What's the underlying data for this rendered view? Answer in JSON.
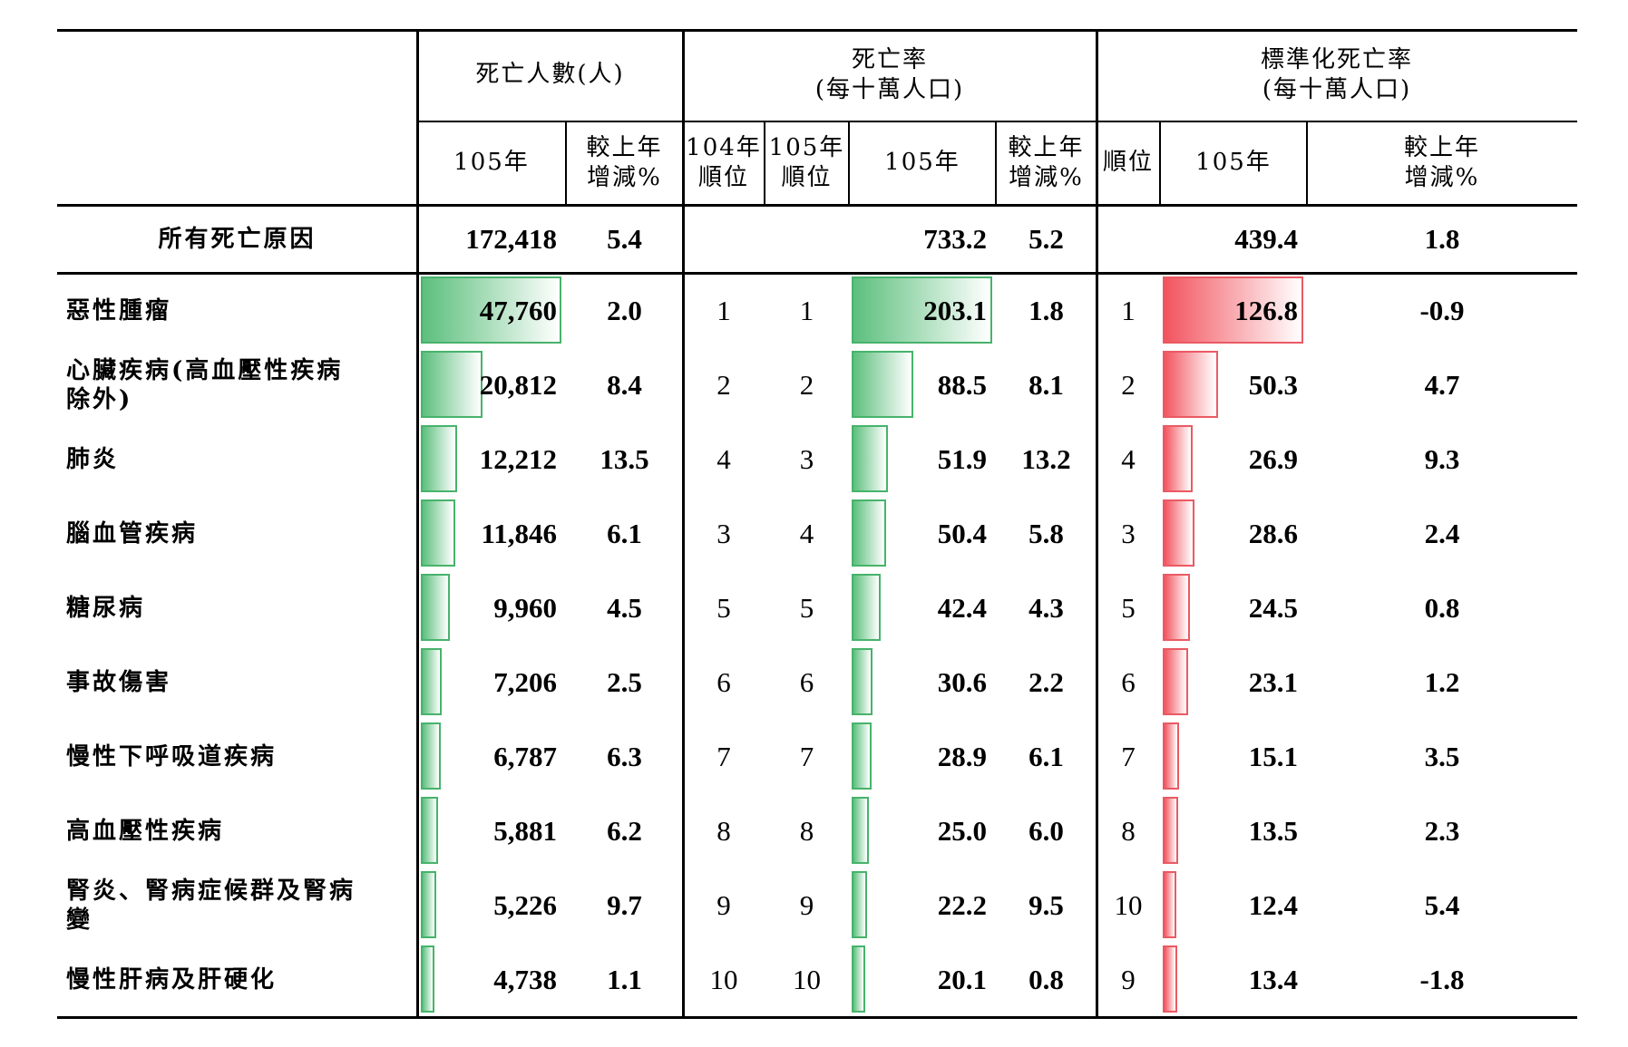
{
  "header": {
    "deaths_group": "死亡人數(人)",
    "rate_group_line1": "死亡率",
    "rate_group_line2": "(每十萬人口)",
    "std_group_line1": "標準化死亡率",
    "std_group_line2": "(每十萬人口)",
    "year_105": "105年",
    "change_line1": "較上年",
    "change_line2": "增減%",
    "rank104_line1": "104年",
    "rank104_line2": "順位",
    "rank105_line1": "105年",
    "rank105_line2": "順位",
    "rank": "順位"
  },
  "total": {
    "label": "所有死亡原因",
    "deaths": "172,418",
    "deaths_change": "5.4",
    "rate": "733.2",
    "rate_change": "5.2",
    "std_rate": "439.4",
    "std_change": "1.8"
  },
  "colors": {
    "green_bar": "#5cbf7d",
    "red_bar": "#f2545f"
  },
  "rows": [
    {
      "label_line1": "惡性腫瘤",
      "label_line2": "",
      "deaths": "47,760",
      "deaths_value": 47760,
      "deaths_change": "2.0",
      "rank104": "1",
      "rank105": "1",
      "rate": "203.1",
      "rate_value": 203.1,
      "rate_change": "1.8",
      "std_rank": "1",
      "std_rate": "126.8",
      "std_value": 126.8,
      "std_change": "-0.9"
    },
    {
      "label_line1": "心臟疾病(高血壓性疾病",
      "label_line2": "除外)",
      "deaths": "20,812",
      "deaths_value": 20812,
      "deaths_change": "8.4",
      "rank104": "2",
      "rank105": "2",
      "rate": "88.5",
      "rate_value": 88.5,
      "rate_change": "8.1",
      "std_rank": "2",
      "std_rate": "50.3",
      "std_value": 50.3,
      "std_change": "4.7"
    },
    {
      "label_line1": "肺炎",
      "label_line2": "",
      "deaths": "12,212",
      "deaths_value": 12212,
      "deaths_change": "13.5",
      "rank104": "4",
      "rank105": "3",
      "rate": "51.9",
      "rate_value": 51.9,
      "rate_change": "13.2",
      "std_rank": "4",
      "std_rate": "26.9",
      "std_value": 26.9,
      "std_change": "9.3"
    },
    {
      "label_line1": "腦血管疾病",
      "label_line2": "",
      "deaths": "11,846",
      "deaths_value": 11846,
      "deaths_change": "6.1",
      "rank104": "3",
      "rank105": "4",
      "rate": "50.4",
      "rate_value": 50.4,
      "rate_change": "5.8",
      "std_rank": "3",
      "std_rate": "28.6",
      "std_value": 28.6,
      "std_change": "2.4"
    },
    {
      "label_line1": "糖尿病",
      "label_line2": "",
      "deaths": "9,960",
      "deaths_value": 9960,
      "deaths_change": "4.5",
      "rank104": "5",
      "rank105": "5",
      "rate": "42.4",
      "rate_value": 42.4,
      "rate_change": "4.3",
      "std_rank": "5",
      "std_rate": "24.5",
      "std_value": 24.5,
      "std_change": "0.8"
    },
    {
      "label_line1": "事故傷害",
      "label_line2": "",
      "deaths": "7,206",
      "deaths_value": 7206,
      "deaths_change": "2.5",
      "rank104": "6",
      "rank105": "6",
      "rate": "30.6",
      "rate_value": 30.6,
      "rate_change": "2.2",
      "std_rank": "6",
      "std_rate": "23.1",
      "std_value": 23.1,
      "std_change": "1.2"
    },
    {
      "label_line1": "慢性下呼吸道疾病",
      "label_line2": "",
      "deaths": "6,787",
      "deaths_value": 6787,
      "deaths_change": "6.3",
      "rank104": "7",
      "rank105": "7",
      "rate": "28.9",
      "rate_value": 28.9,
      "rate_change": "6.1",
      "std_rank": "7",
      "std_rate": "15.1",
      "std_value": 15.1,
      "std_change": "3.5"
    },
    {
      "label_line1": "高血壓性疾病",
      "label_line2": "",
      "deaths": "5,881",
      "deaths_value": 5881,
      "deaths_change": "6.2",
      "rank104": "8",
      "rank105": "8",
      "rate": "25.0",
      "rate_value": 25.0,
      "rate_change": "6.0",
      "std_rank": "8",
      "std_rate": "13.5",
      "std_value": 13.5,
      "std_change": "2.3"
    },
    {
      "label_line1": "腎炎、腎病症候群及腎病",
      "label_line2": "變",
      "deaths": "5,226",
      "deaths_value": 5226,
      "deaths_change": "9.7",
      "rank104": "9",
      "rank105": "9",
      "rate": "22.2",
      "rate_value": 22.2,
      "rate_change": "9.5",
      "std_rank": "10",
      "std_rate": "12.4",
      "std_value": 12.4,
      "std_change": "5.4"
    },
    {
      "label_line1": "慢性肝病及肝硬化",
      "label_line2": "",
      "deaths": "4,738",
      "deaths_value": 4738,
      "deaths_change": "1.1",
      "rank104": "10",
      "rank105": "10",
      "rate": "20.1",
      "rate_value": 20.1,
      "rate_change": "0.8",
      "std_rank": "9",
      "std_rate": "13.4",
      "std_value": 13.4,
      "std_change": "-1.8"
    }
  ]
}
